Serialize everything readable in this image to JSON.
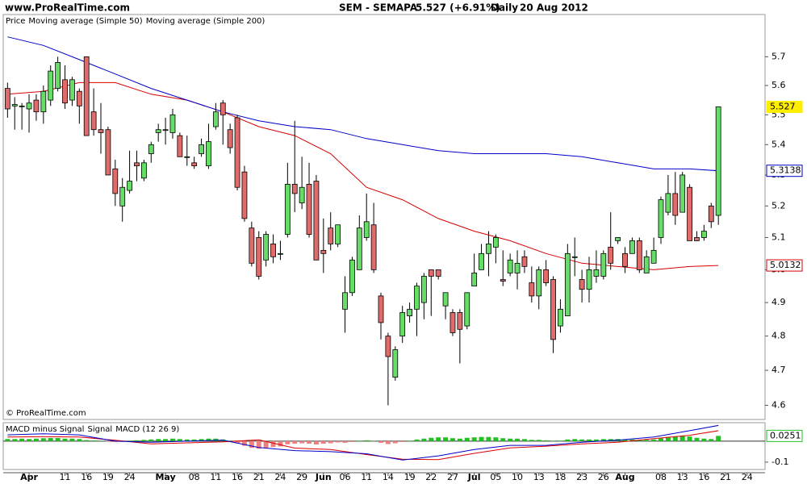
{
  "header": {
    "site": "www.ProRealTime.com",
    "symbol": "SEM - SEMAPA",
    "quote": "5.527 (+6.91%)",
    "period": "Daily",
    "date": "20 Aug 2012"
  },
  "chart_data": [
    {
      "type": "candlestick",
      "name": "Price",
      "copyright": "© ProRealTime.com",
      "log_scale": true,
      "ylim": [
        4.56,
        5.85
      ],
      "yticks": [
        4.6,
        4.7,
        4.8,
        4.9,
        {
          "value": 5,
          "label": "5.0"
        },
        5.1,
        5.2,
        5.3,
        5.4,
        5.5,
        5.6,
        5.7
      ],
      "xlim": [
        -0.6,
        105.5
      ],
      "up_color": "#66dd66",
      "down_color": "#e06b6b",
      "last_marker_color": "#ffee00",
      "open": [
        5.59,
        5.53,
        5.53,
        5.52,
        5.55,
        5.51,
        5.55,
        5.59,
        5.62,
        5.55,
        5.58,
        5.7,
        5.51,
        5.45,
        5.45,
        5.32,
        5.2,
        5.25,
        5.34,
        5.29,
        5.37,
        5.44,
        5.45,
        5.44,
        5.43,
        5.36,
        5.34,
        5.37,
        5.33,
        5.46,
        5.54,
        5.45,
        5.49,
        5.31,
        5.13,
        5.1,
        5.03,
        5.08,
        5.05,
        5.11,
        5.27,
        5.21,
        5.27,
        5.28,
        5.06,
        5.13,
        5.08,
        4.88,
        4.93,
        5.0,
        5.1,
        5.14,
        4.92,
        4.8,
        4.68,
        4.8,
        4.86,
        4.88,
        4.9,
        5.0,
        5.0,
        4.89,
        4.87,
        4.87,
        4.83,
        4.95,
        5.0,
        5.05,
        5.07,
        4.97,
        4.99,
        4.99,
        5.04,
        4.96,
        4.92,
        5.0,
        4.97,
        4.83,
        4.86,
        5.04,
        4.97,
        4.94,
        4.98,
        4.98,
        5.07,
        5.09,
        5.05,
        5.05,
        5.09,
        4.99,
        5.02,
        5.1,
        5.18,
        5.24,
        5.18,
        5.26,
        5.1,
        5.1,
        5.2,
        5.17
      ],
      "high": [
        5.61,
        5.56,
        5.54,
        5.57,
        5.57,
        5.6,
        5.67,
        5.7,
        5.67,
        5.63,
        5.59,
        5.7,
        5.59,
        5.54,
        5.46,
        5.35,
        5.29,
        5.38,
        5.38,
        5.35,
        5.41,
        5.47,
        5.49,
        5.52,
        5.44,
        5.43,
        5.36,
        5.42,
        5.47,
        5.54,
        5.55,
        5.47,
        5.5,
        5.33,
        5.15,
        5.12,
        5.12,
        5.11,
        5.09,
        5.34,
        5.48,
        5.36,
        5.34,
        5.3,
        5.16,
        5.18,
        5.14,
        4.98,
        5.04,
        5.17,
        5.24,
        5.21,
        4.93,
        4.81,
        4.77,
        4.89,
        4.9,
        4.96,
        4.99,
        5.0,
        5.0,
        4.92,
        4.88,
        4.88,
        4.93,
        5.05,
        5.08,
        5.12,
        5.11,
        5.06,
        5.05,
        5.06,
        5.06,
        5.01,
        5.01,
        5.03,
        4.98,
        4.91,
        5.08,
        5.1,
        5.0,
        5.04,
        5.06,
        5.06,
        5.18,
        5.1,
        5.07,
        5.1,
        5.1,
        5.06,
        5.1,
        5.23,
        5.3,
        5.31,
        5.31,
        5.27,
        5.12,
        5.14,
        5.21,
        5.527
      ],
      "low": [
        5.49,
        5.45,
        5.45,
        5.44,
        5.48,
        5.47,
        5.53,
        5.58,
        5.52,
        5.53,
        5.47,
        5.43,
        5.43,
        5.37,
        5.3,
        5.2,
        5.15,
        5.24,
        5.28,
        5.28,
        5.34,
        5.41,
        5.4,
        5.42,
        5.36,
        5.33,
        5.32,
        5.36,
        5.32,
        5.45,
        5.4,
        5.37,
        5.25,
        5.15,
        5.01,
        4.97,
        5.01,
        5.02,
        5.03,
        5.1,
        5.18,
        5.19,
        5.1,
        5.03,
        4.99,
        5.06,
        5.07,
        4.81,
        4.92,
        5.0,
        5.09,
        4.99,
        4.79,
        4.6,
        4.67,
        4.78,
        4.84,
        4.8,
        4.85,
        4.86,
        4.97,
        4.85,
        4.8,
        4.72,
        4.82,
        4.95,
        5.0,
        4.98,
        5.02,
        4.95,
        4.98,
        4.94,
        4.99,
        4.9,
        4.88,
        4.95,
        4.75,
        4.81,
        4.86,
        4.98,
        4.9,
        4.9,
        4.96,
        4.97,
        5.0,
        5.08,
        4.99,
        5.05,
        4.99,
        4.99,
        5.02,
        5.08,
        5.17,
        5.14,
        5.18,
        5.09,
        5.09,
        5.09,
        5.13,
        5.14
      ],
      "close": [
        5.52,
        5.535,
        5.53,
        5.54,
        5.51,
        5.58,
        5.65,
        5.68,
        5.54,
        5.62,
        5.53,
        5.43,
        5.45,
        5.44,
        5.3,
        5.24,
        5.26,
        5.28,
        5.33,
        5.34,
        5.4,
        5.45,
        5.45,
        5.5,
        5.36,
        5.36,
        5.33,
        5.4,
        5.41,
        5.51,
        5.5,
        5.39,
        5.26,
        5.16,
        5.02,
        4.98,
        5.11,
        5.04,
        5.05,
        5.27,
        5.24,
        5.26,
        5.11,
        5.03,
        5.05,
        5.08,
        5.14,
        4.93,
        5.03,
        5.13,
        5.15,
        5.0,
        4.84,
        4.74,
        4.76,
        4.87,
        4.88,
        4.95,
        4.98,
        4.98,
        4.98,
        4.93,
        4.81,
        4.82,
        4.93,
        4.99,
        5.05,
        5.08,
        5.1,
        4.965,
        5.03,
        5.02,
        5.01,
        4.92,
        5.0,
        4.96,
        4.79,
        4.88,
        5.05,
        5.04,
        4.94,
        5.0,
        5.0,
        5.05,
        5.02,
        5.1,
        5.01,
        5.09,
        5.0,
        5.04,
        5.06,
        5.22,
        5.24,
        5.17,
        5.3,
        5.09,
        5.09,
        5.12,
        5.15,
        5.527
      ],
      "series": [
        {
          "name": "Moving average (Simple 50)",
          "color": "#d40000",
          "x": [
            0,
            5,
            10,
            15,
            20,
            25,
            30,
            35,
            40,
            45,
            50,
            55,
            60,
            65,
            70,
            75,
            80,
            85,
            90,
            95,
            99
          ],
          "values": [
            5.57,
            5.58,
            5.61,
            5.61,
            5.57,
            5.55,
            5.51,
            5.46,
            5.43,
            5.37,
            5.26,
            5.22,
            5.16,
            5.12,
            5.09,
            5.05,
            5.02,
            5.01,
            5.0,
            5.01,
            5.0132
          ]
        },
        {
          "name": "Moving average (Simple 200)",
          "color": "#0000c8",
          "x": [
            0,
            5,
            10,
            15,
            20,
            25,
            30,
            35,
            40,
            45,
            50,
            55,
            60,
            65,
            70,
            75,
            80,
            85,
            90,
            95,
            99
          ],
          "values": [
            5.77,
            5.74,
            5.69,
            5.64,
            5.59,
            5.55,
            5.51,
            5.48,
            5.46,
            5.45,
            5.42,
            5.4,
            5.38,
            5.37,
            5.37,
            5.37,
            5.36,
            5.34,
            5.32,
            5.32,
            5.3138
          ]
        }
      ]
    },
    {
      "type": "macd",
      "ylim": [
        -0.135,
        0.088
      ],
      "yticks": [
        -0.1
      ],
      "zero_line": true,
      "xlim": [
        -0.6,
        105.5
      ],
      "xticks": [
        {
          "value": 3,
          "label": "Apr"
        },
        {
          "value": 8,
          "label": "11"
        },
        {
          "value": 11,
          "label": "16"
        },
        {
          "value": 14,
          "label": "19"
        },
        {
          "value": 17,
          "label": "24"
        },
        {
          "value": 22,
          "label": "May"
        },
        {
          "value": 26,
          "label": "08"
        },
        {
          "value": 29,
          "label": "11"
        },
        {
          "value": 32,
          "label": "16"
        },
        {
          "value": 35,
          "label": "21"
        },
        {
          "value": 38,
          "label": "24"
        },
        {
          "value": 41,
          "label": "29"
        },
        {
          "value": 44,
          "label": "Jun"
        },
        {
          "value": 47,
          "label": "06"
        },
        {
          "value": 50,
          "label": "11"
        },
        {
          "value": 53,
          "label": "14"
        },
        {
          "value": 56,
          "label": "19"
        },
        {
          "value": 59,
          "label": "22"
        },
        {
          "value": 62,
          "label": "27"
        },
        {
          "value": 65,
          "label": "Jul"
        },
        {
          "value": 68,
          "label": "05"
        },
        {
          "value": 71,
          "label": "10"
        },
        {
          "value": 74,
          "label": "13"
        },
        {
          "value": 77,
          "label": "18"
        },
        {
          "value": 80,
          "label": "23"
        },
        {
          "value": 83,
          "label": "26"
        },
        {
          "value": 86,
          "label": "Aug"
        },
        {
          "value": 91,
          "label": "08"
        },
        {
          "value": 94,
          "label": "13"
        },
        {
          "value": 97,
          "label": "16"
        },
        {
          "value": 100,
          "label": "21"
        },
        {
          "value": 103,
          "label": "24"
        }
      ],
      "month_labels": [
        "Apr",
        "May",
        "Jun",
        "Jul",
        "Aug"
      ],
      "up_color": "#22c022",
      "down_color": "#f08080",
      "series": [
        {
          "name": "MACD minus Signal",
          "color": "#22c022",
          "kind": "histogram",
          "values": [
            0.01,
            0.01,
            0.012,
            0.01,
            0.012,
            0.014,
            0.015,
            0.015,
            0.012,
            0.012,
            0.01,
            0.005,
            0.003,
            0.002,
            -0.002,
            -0.004,
            -0.003,
            0.002,
            0.004,
            0.006,
            0.008,
            0.01,
            0.01,
            0.012,
            0.01,
            0.008,
            0.008,
            0.01,
            0.012,
            0.012,
            0.008,
            0.002,
            -0.01,
            -0.022,
            -0.032,
            -0.036,
            -0.032,
            -0.028,
            -0.025,
            -0.015,
            -0.012,
            -0.01,
            -0.012,
            -0.016,
            -0.012,
            -0.01,
            -0.006,
            -0.008,
            -0.004,
            0.002,
            0.004,
            0.001,
            -0.008,
            -0.014,
            -0.01,
            -0.004,
            0.002,
            0.008,
            0.012,
            0.016,
            0.018,
            0.018,
            0.014,
            0.012,
            0.016,
            0.018,
            0.02,
            0.02,
            0.018,
            0.014,
            0.012,
            0.012,
            0.01,
            0.006,
            0.006,
            0.004,
            0.001,
            0.002,
            0.008,
            0.01,
            0.008,
            0.008,
            0.008,
            0.01,
            0.01,
            0.01,
            0.008,
            0.008,
            0.006,
            0.006,
            0.008,
            0.014,
            0.02,
            0.022,
            0.026,
            0.022,
            0.016,
            0.012,
            0.01,
            0.0251
          ]
        },
        {
          "name": "Signal",
          "color": "#dd0000",
          "kind": "line",
          "x": [
            0,
            5,
            10,
            15,
            20,
            25,
            30,
            35,
            40,
            45,
            50,
            55,
            60,
            65,
            70,
            75,
            80,
            85,
            90,
            95,
            99
          ],
          "values": [
            0.02,
            0.021,
            0.02,
            0.004,
            -0.013,
            -0.008,
            -0.003,
            0.006,
            -0.033,
            -0.04,
            -0.064,
            -0.086,
            -0.088,
            -0.058,
            -0.032,
            -0.024,
            -0.013,
            -0.005,
            0.012,
            0.028,
            0.05
          ]
        },
        {
          "name": "MACD (12 26 9)",
          "color": "#0000cc",
          "kind": "line",
          "x": [
            0,
            5,
            10,
            15,
            20,
            25,
            30,
            35,
            40,
            45,
            50,
            55,
            60,
            65,
            70,
            75,
            80,
            85,
            90,
            95,
            99
          ],
          "values": [
            0.03,
            0.035,
            0.03,
            0.0,
            -0.005,
            0.0,
            0.005,
            -0.03,
            -0.045,
            -0.05,
            -0.06,
            -0.09,
            -0.07,
            -0.04,
            -0.02,
            -0.02,
            -0.005,
            0.005,
            0.02,
            0.05,
            0.075
          ]
        }
      ]
    }
  ]
}
